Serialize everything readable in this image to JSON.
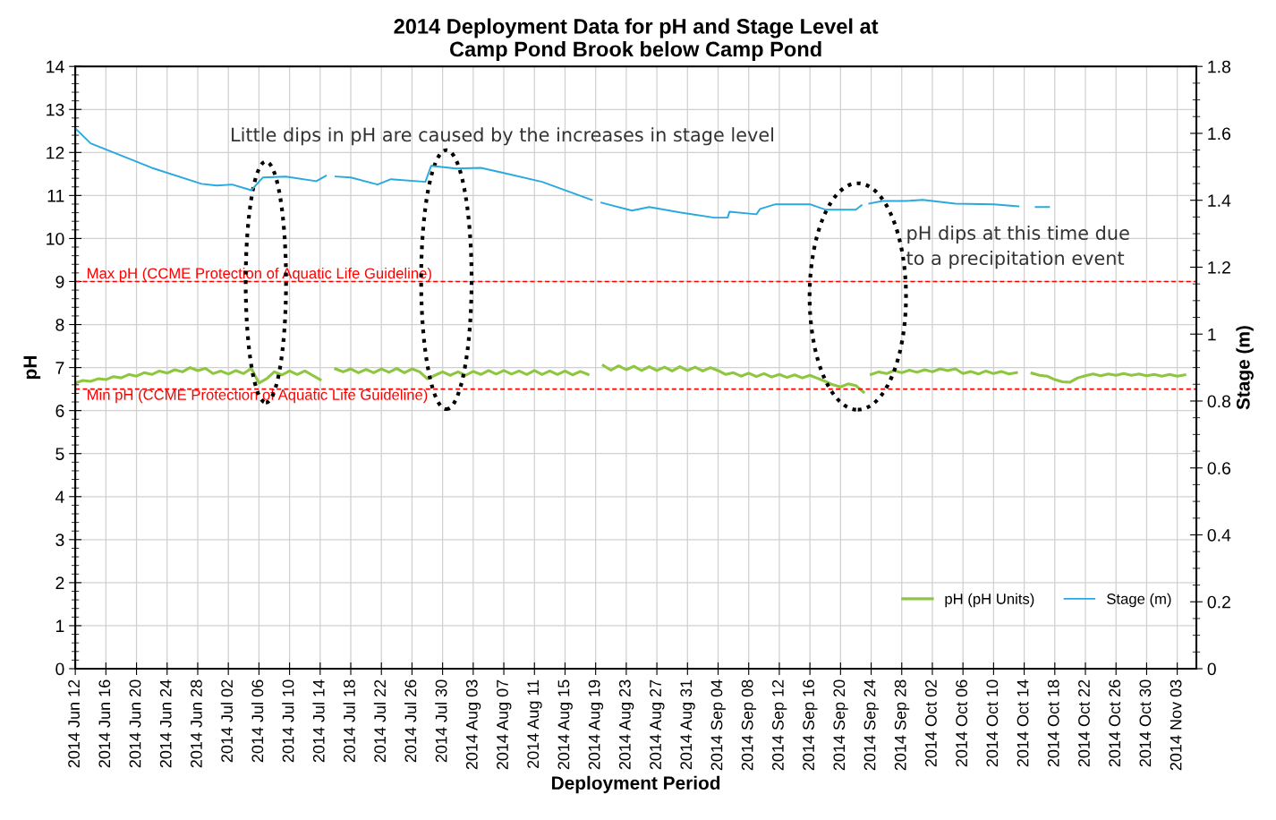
{
  "chart_data": {
    "type": "line",
    "title": "2014 Deployment Data for pH and Stage Level at\nCamp Pond Brook below Camp Pond",
    "xlabel": "Deployment Period",
    "ylabel": "pH",
    "y2label": "Stage (m)",
    "x": [
      "2014-06-12",
      "2014-06-13",
      "2014-06-14",
      "2014-06-15",
      "2014-06-16",
      "2014-06-17",
      "2014-06-18",
      "2014-06-19",
      "2014-06-20",
      "2014-06-21",
      "2014-06-22",
      "2014-06-23",
      "2014-06-24",
      "2014-06-25",
      "2014-06-26",
      "2014-06-27",
      "2014-06-28",
      "2014-06-29",
      "2014-06-30",
      "2014-07-01",
      "2014-07-02",
      "2014-07-03",
      "2014-07-04",
      "2014-07-05",
      "2014-07-06",
      "2014-07-07",
      "2014-07-08",
      "2014-07-09",
      "2014-07-10",
      "2014-07-11",
      "2014-07-12",
      "2014-07-13",
      "2014-07-14",
      "2014-07-15",
      "2014-07-16",
      "2014-07-17",
      "2014-07-18",
      "2014-07-19",
      "2014-07-20",
      "2014-07-21",
      "2014-07-22",
      "2014-07-23",
      "2014-07-24",
      "2014-07-25",
      "2014-07-26",
      "2014-07-27",
      "2014-07-28",
      "2014-07-29",
      "2014-07-30",
      "2014-07-31",
      "2014-08-01",
      "2014-08-02",
      "2014-08-03",
      "2014-08-04",
      "2014-08-05",
      "2014-08-06",
      "2014-08-07",
      "2014-08-08",
      "2014-08-09",
      "2014-08-10",
      "2014-08-11",
      "2014-08-12",
      "2014-08-13",
      "2014-08-14",
      "2014-08-15",
      "2014-08-16",
      "2014-08-17",
      "2014-08-18",
      "2014-08-19",
      "2014-08-20",
      "2014-08-21",
      "2014-08-22",
      "2014-08-23",
      "2014-08-24",
      "2014-08-25",
      "2014-08-26",
      "2014-08-27",
      "2014-08-28",
      "2014-08-29",
      "2014-08-30",
      "2014-08-31",
      "2014-09-01",
      "2014-09-02",
      "2014-09-03",
      "2014-09-04",
      "2014-09-05",
      "2014-09-06",
      "2014-09-07",
      "2014-09-08",
      "2014-09-09",
      "2014-09-10",
      "2014-09-11",
      "2014-09-12",
      "2014-09-13",
      "2014-09-14",
      "2014-09-15",
      "2014-09-16",
      "2014-09-17",
      "2014-09-18",
      "2014-09-19",
      "2014-09-20",
      "2014-09-21",
      "2014-09-22",
      "2014-09-23",
      "2014-09-23T12:00",
      "2014-09-24",
      "2014-09-25",
      "2014-09-26",
      "2014-09-27",
      "2014-09-28",
      "2014-09-29",
      "2014-09-30",
      "2014-10-01",
      "2014-10-02",
      "2014-10-03",
      "2014-10-04",
      "2014-10-05",
      "2014-10-06",
      "2014-10-07",
      "2014-10-08",
      "2014-10-09",
      "2014-10-10",
      "2014-10-11",
      "2014-10-12",
      "2014-10-13",
      "2014-10-14",
      "2014-10-15",
      "2014-10-16",
      "2014-10-17",
      "2014-10-18",
      "2014-10-19",
      "2014-10-20",
      "2014-10-21",
      "2014-10-22",
      "2014-10-23",
      "2014-10-24",
      "2014-10-25",
      "2014-10-26",
      "2014-10-27",
      "2014-10-28",
      "2014-10-29",
      "2014-10-30",
      "2014-10-31",
      "2014-11-01",
      "2014-11-02",
      "2014-11-03",
      "2014-11-04"
    ],
    "series": [
      {
        "name": "pH (pH Units)",
        "color": "#8dc63f",
        "axis": "y",
        "values": [
          6.64,
          6.7,
          6.68,
          6.74,
          6.72,
          6.79,
          6.76,
          6.84,
          6.8,
          6.88,
          6.84,
          6.92,
          6.87,
          6.95,
          6.9,
          7.0,
          6.93,
          6.98,
          6.86,
          6.92,
          6.85,
          6.93,
          6.86,
          6.98,
          6.64,
          6.74,
          6.9,
          6.83,
          6.92,
          6.84,
          6.92,
          6.82,
          6.72,
          null,
          6.97,
          6.9,
          6.97,
          6.88,
          6.96,
          6.88,
          6.97,
          6.89,
          6.98,
          6.88,
          6.97,
          6.9,
          6.74,
          6.82,
          6.9,
          6.82,
          6.9,
          6.82,
          6.91,
          6.84,
          6.93,
          6.85,
          6.93,
          6.85,
          6.92,
          6.84,
          6.93,
          6.84,
          6.92,
          6.84,
          6.92,
          6.83,
          6.91,
          6.84,
          null,
          7.05,
          6.94,
          7.04,
          6.95,
          7.03,
          6.93,
          7.02,
          6.93,
          7.01,
          6.92,
          7.02,
          6.93,
          7.01,
          6.92,
          7.0,
          6.93,
          6.84,
          6.88,
          6.8,
          6.87,
          6.79,
          6.86,
          6.78,
          6.84,
          6.77,
          6.83,
          6.76,
          6.82,
          6.75,
          6.68,
          6.6,
          6.55,
          6.62,
          6.58,
          6.43,
          null,
          6.84,
          6.9,
          6.86,
          6.93,
          6.88,
          6.94,
          6.89,
          6.95,
          6.9,
          6.97,
          6.93,
          6.97,
          6.86,
          6.91,
          6.85,
          6.92,
          6.86,
          6.91,
          6.85,
          6.88,
          null,
          6.87,
          6.82,
          6.8,
          6.72,
          6.67,
          6.66,
          6.76,
          6.81,
          6.85,
          6.81,
          6.85,
          6.82,
          6.86,
          6.82,
          6.85,
          6.81,
          6.84,
          6.8,
          6.84,
          6.8,
          6.83
        ]
      },
      {
        "name": "Stage (m)",
        "color": "#29a9df",
        "axis": "y2",
        "x": [
          "2014-06-12T00:00",
          "2014-06-14T00:00",
          "2014-06-22T00:00",
          "2014-06-28T12:00",
          "2014-06-30T12:00",
          "2014-07-02T12:00",
          "2014-07-05T00:00",
          "2014-07-06T12:00",
          "2014-07-09T12:00",
          "2014-07-13T12:00",
          "2014-07-14T18:00",
          "2014-07-15T06:00",
          "2014-07-16T00:00",
          "2014-07-18T00:00",
          "2014-07-21T12:00",
          "2014-07-23T06:00",
          "2014-07-27T18:00",
          "2014-07-28T12:00",
          "2014-07-31T18:00",
          "2014-08-04T00:00",
          "2014-08-06T12:00",
          "2014-08-12T00:00",
          "2014-08-18T12:00",
          "2014-08-19T06:00",
          "2014-08-19T18:00",
          "2014-08-23T18:00",
          "2014-08-26T00:00",
          "2014-08-30T18:00",
          "2014-09-03T12:00",
          "2014-09-05T06:00",
          "2014-09-05T12:00",
          "2014-09-09T00:00",
          "2014-09-09T12:00",
          "2014-09-11T12:00",
          "2014-09-16T00:00",
          "2014-09-18T00:00",
          "2014-09-22T00:00",
          "2014-09-22T18:00",
          "2014-09-23T06:00",
          "2014-09-23T18:00",
          "2014-09-25T12:00",
          "2014-09-28T12:00",
          "2014-09-30T18:00",
          "2014-10-05T00:00",
          "2014-10-10T00:00",
          "2014-10-13T06:00",
          "2014-10-14T00:00",
          "2014-10-15T12:00",
          "2014-10-17T06:00"
        ],
        "values": [
          1.615,
          1.57,
          1.497,
          1.449,
          1.444,
          1.447,
          1.43,
          1.468,
          1.471,
          1.457,
          1.473,
          null,
          1.471,
          1.468,
          1.447,
          1.463,
          1.455,
          1.503,
          1.495,
          1.497,
          1.484,
          1.455,
          1.401,
          null,
          1.393,
          1.369,
          1.38,
          1.361,
          1.348,
          1.348,
          1.366,
          1.358,
          1.374,
          1.388,
          1.388,
          1.372,
          1.372,
          1.385,
          null,
          1.39,
          1.398,
          1.398,
          1.401,
          1.39,
          1.388,
          1.382,
          null,
          1.38,
          1.38
        ]
      }
    ],
    "xlim": [
      "2014-06-12",
      "2014-11-05T12:00"
    ],
    "xticks": [
      {
        "value": "2014-06-12",
        "label": "2014 Jun 12"
      },
      {
        "value": "2014-06-16",
        "label": "2014 Jun 16"
      },
      {
        "value": "2014-06-20",
        "label": "2014 Jun 20"
      },
      {
        "value": "2014-06-24",
        "label": "2014 Jun 24"
      },
      {
        "value": "2014-06-28",
        "label": "2014 Jun 28"
      },
      {
        "value": "2014-07-02",
        "label": "2014 Jul 02"
      },
      {
        "value": "2014-07-06",
        "label": "2014 Jul 06"
      },
      {
        "value": "2014-07-10",
        "label": "2014 Jul 10"
      },
      {
        "value": "2014-07-14",
        "label": "2014 Jul 14"
      },
      {
        "value": "2014-07-18",
        "label": "2014 Jul 18"
      },
      {
        "value": "2014-07-22",
        "label": "2014 Jul 22"
      },
      {
        "value": "2014-07-26",
        "label": "2014 Jul 26"
      },
      {
        "value": "2014-07-30",
        "label": "2014 Jul 30"
      },
      {
        "value": "2014-08-03",
        "label": "2014 Aug 03"
      },
      {
        "value": "2014-08-07",
        "label": "2014 Aug 07"
      },
      {
        "value": "2014-08-11",
        "label": "2014 Aug 11"
      },
      {
        "value": "2014-08-15",
        "label": "2014 Aug 15"
      },
      {
        "value": "2014-08-19",
        "label": "2014 Aug 19"
      },
      {
        "value": "2014-08-23",
        "label": "2014 Aug 23"
      },
      {
        "value": "2014-08-27",
        "label": "2014 Aug 27"
      },
      {
        "value": "2014-08-31",
        "label": "2014 Aug 31"
      },
      {
        "value": "2014-09-04",
        "label": "2014 Sep 04"
      },
      {
        "value": "2014-09-08",
        "label": "2014 Sep 08"
      },
      {
        "value": "2014-09-12",
        "label": "2014 Sep 12"
      },
      {
        "value": "2014-09-16",
        "label": "2014 Sep 16"
      },
      {
        "value": "2014-09-20",
        "label": "2014 Sep 20"
      },
      {
        "value": "2014-09-24",
        "label": "2014 Sep 24"
      },
      {
        "value": "2014-09-28",
        "label": "2014 Sep 28"
      },
      {
        "value": "2014-10-02",
        "label": "2014 Oct 02"
      },
      {
        "value": "2014-10-06",
        "label": "2014 Oct 06"
      },
      {
        "value": "2014-10-10",
        "label": "2014 Oct 10"
      },
      {
        "value": "2014-10-14",
        "label": "2014 Oct 14"
      },
      {
        "value": "2014-10-18",
        "label": "2014 Oct 18"
      },
      {
        "value": "2014-10-22",
        "label": "2014 Oct 22"
      },
      {
        "value": "2014-10-26",
        "label": "2014 Oct 26"
      },
      {
        "value": "2014-10-30",
        "label": "2014 Oct 30"
      },
      {
        "value": "2014-11-03",
        "label": "2014 Nov 03"
      }
    ],
    "ylim": [
      0,
      14
    ],
    "yticks": [
      0,
      1,
      2,
      3,
      4,
      5,
      6,
      7,
      8,
      9,
      10,
      11,
      12,
      13,
      14
    ],
    "y2lim": [
      0,
      1.8
    ],
    "y2ticks": [
      0,
      0.2,
      0.4,
      0.6,
      0.8,
      1,
      1.2,
      1.4,
      1.6,
      1.8
    ],
    "ref_lines": [
      {
        "axis": "y",
        "value": 9,
        "label": "Max pH (CCME Protection of Aquatic Life Guideline)",
        "color": "#ff0000",
        "line_style": "dashed"
      },
      {
        "axis": "y",
        "value": 6.5,
        "label": "Min pH (CCME Protection of Aquatic Life Guideline)",
        "color": "#ff0000",
        "line_style": "dashed"
      }
    ],
    "annotations": [
      "Little dips in pH are caused by the increases in stage level",
      "pH dips at this time due\nto a precipitation event"
    ],
    "grid": true,
    "legend": "bottom right",
    "marker": "none",
    "line_style": "solid"
  }
}
